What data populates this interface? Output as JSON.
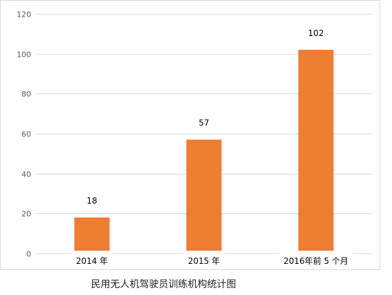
{
  "caption": "民用无人机驾驶员训练机构统计图",
  "colors": {
    "bar": "#ED7D31",
    "grid": "#D9D9D9",
    "frame": "#D9D9D9",
    "text": "#595959",
    "label": "#000000"
  },
  "chart_data": {
    "type": "bar",
    "categories": [
      "2014 年",
      "2015 年",
      "2016年前 5 个月"
    ],
    "values": [
      18,
      57,
      102
    ],
    "data_labels": [
      "18",
      "57",
      "102"
    ],
    "ylim": [
      0,
      120
    ],
    "yticks": [
      "0",
      "20",
      "40",
      "60",
      "80",
      "100",
      "120"
    ],
    "grid": true,
    "legend": "none",
    "title": "",
    "xlabel": "",
    "ylabel": ""
  }
}
